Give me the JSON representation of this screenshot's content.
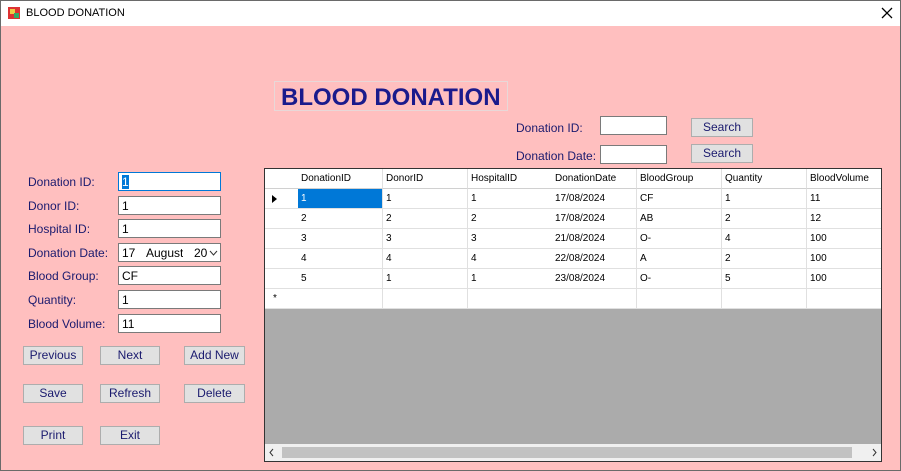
{
  "window": {
    "title": "BLOOD DONATION"
  },
  "header": {
    "title": "BLOOD DONATION"
  },
  "search": {
    "labels": [
      "Donation ID:",
      "Donation Date:"
    ],
    "buttons": [
      "Search",
      "Search"
    ]
  },
  "form": {
    "fields": [
      {
        "label": "Donation ID:",
        "value": "1"
      },
      {
        "label": "Donor ID:",
        "value": "1"
      },
      {
        "label": "Hospital ID:",
        "value": "1"
      },
      {
        "label": "Donation Date:",
        "parts": [
          "17",
          "August",
          "20"
        ]
      },
      {
        "label": "Blood Group:",
        "value": "CF"
      },
      {
        "label": "Quantity:",
        "value": "1"
      },
      {
        "label": "Blood Volume:",
        "value": "11"
      }
    ]
  },
  "buttons": [
    "Previous",
    "Next",
    "Add New",
    "Save",
    "Refresh",
    "Delete",
    "Print",
    "Exit"
  ],
  "table": {
    "columns": [
      "DonationID",
      "DonorID",
      "HospitalID",
      "DonationDate",
      "BloodGroup",
      "Quantity",
      "BloodVolume"
    ],
    "rows": [
      [
        "1",
        "1",
        "1",
        "17/08/2024",
        "CF",
        "1",
        "11"
      ],
      [
        "2",
        "2",
        "2",
        "17/08/2024",
        "AB",
        "2",
        "12"
      ],
      [
        "3",
        "3",
        "3",
        "21/08/2024",
        "O-",
        "4",
        "100"
      ],
      [
        "4",
        "4",
        "4",
        "22/08/2024",
        "A",
        "2",
        "100"
      ],
      [
        "5",
        "1",
        "1",
        "23/08/2024",
        "O-",
        "5",
        "100"
      ]
    ],
    "new_row_marker": "*"
  }
}
